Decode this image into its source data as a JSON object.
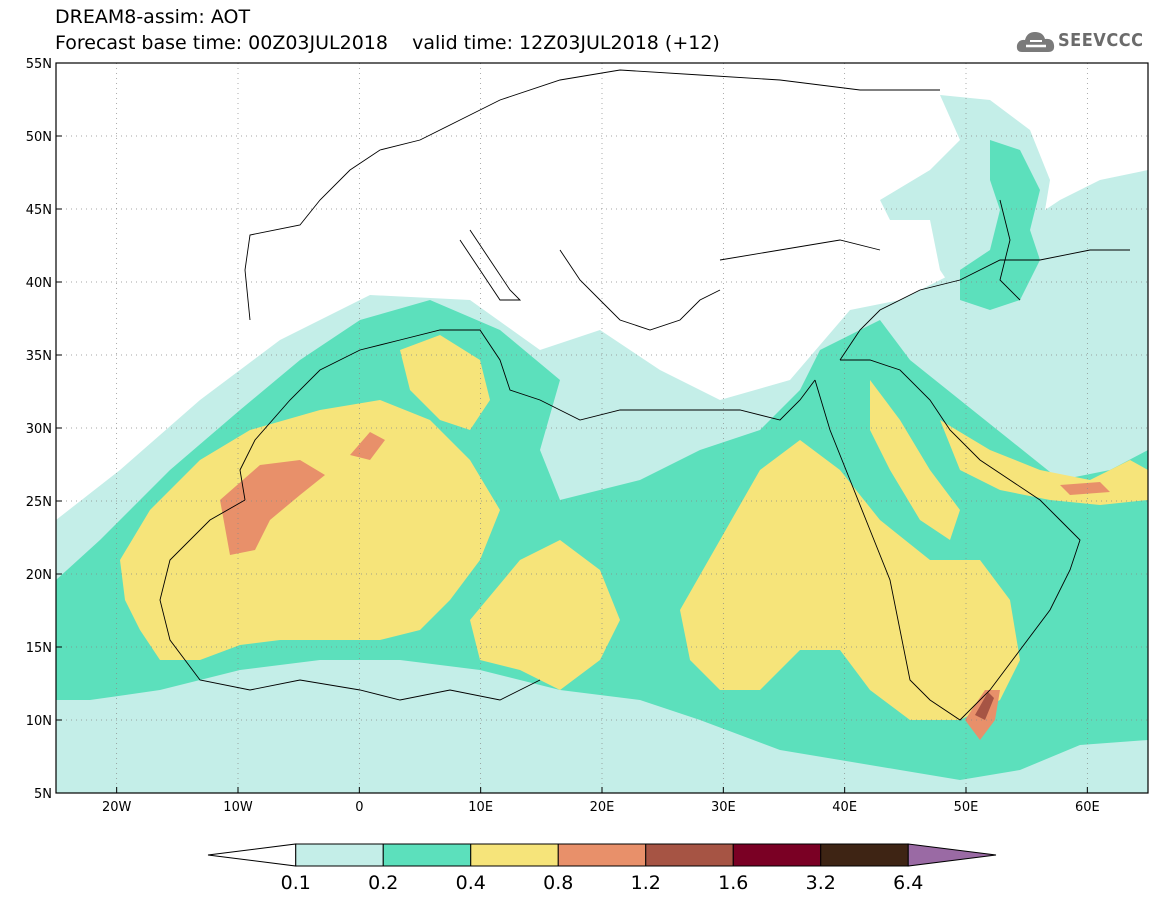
{
  "header": {
    "title": "DREAM8-assim: AOT",
    "forecast_label": "Forecast base time: 00Z03JUL2018",
    "valid_label": "valid time: 12Z03JUL2018 (+12)",
    "logo_text": "SEEVCCC",
    "logo_icon": "cloud-logo-icon"
  },
  "map": {
    "lon_range": [
      -25,
      65
    ],
    "lat_range": [
      5,
      55
    ],
    "lon_ticks": [
      {
        "value": -20,
        "label": "20W"
      },
      {
        "value": -10,
        "label": "10W"
      },
      {
        "value": 0,
        "label": "0"
      },
      {
        "value": 10,
        "label": "10E"
      },
      {
        "value": 20,
        "label": "20E"
      },
      {
        "value": 30,
        "label": "30E"
      },
      {
        "value": 40,
        "label": "40E"
      },
      {
        "value": 50,
        "label": "50E"
      },
      {
        "value": 60,
        "label": "60E"
      }
    ],
    "lat_ticks": [
      {
        "value": 5,
        "label": "5N"
      },
      {
        "value": 10,
        "label": "10N"
      },
      {
        "value": 15,
        "label": "15N"
      },
      {
        "value": 20,
        "label": "20N"
      },
      {
        "value": 25,
        "label": "25N"
      },
      {
        "value": 30,
        "label": "30N"
      },
      {
        "value": 35,
        "label": "35N"
      },
      {
        "value": 40,
        "label": "40N"
      },
      {
        "value": 45,
        "label": "45N"
      },
      {
        "value": 50,
        "label": "50N"
      },
      {
        "value": 55,
        "label": "55N"
      }
    ],
    "grid": "dotted"
  },
  "colorbar": {
    "thresholds": [
      "0.1",
      "0.2",
      "0.4",
      "0.8",
      "1.2",
      "1.6",
      "3.2",
      "6.4"
    ],
    "colors": [
      "#ffffff",
      "#c4eee8",
      "#5ce0bc",
      "#f6e47a",
      "#e8906a",
      "#a65444",
      "#7a0024",
      "#3e2414",
      "#9a6aa4"
    ]
  },
  "colors": {
    "aot_0_1": "#c4eee8",
    "aot_0_2": "#5ce0bc",
    "aot_0_4": "#f6e47a",
    "aot_0_8": "#e8906a",
    "aot_1_2": "#a65444"
  }
}
